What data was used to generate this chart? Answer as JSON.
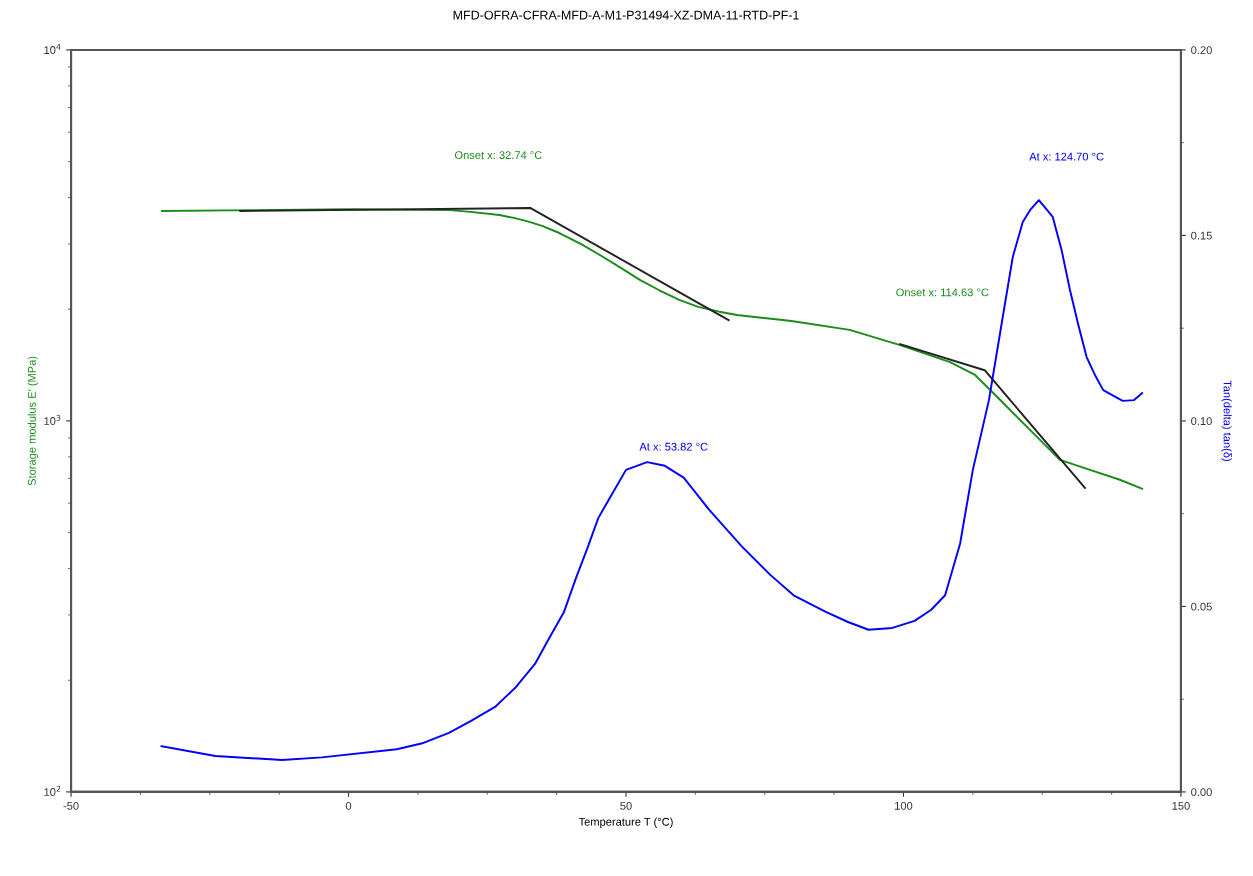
{
  "chart_data": {
    "type": "line",
    "title": "MFD-OFRA-CFRA-MFD-A-M1-P31494-XZ-DMA-11-RTD-PF-1",
    "xlabel": "Temperature T (°C)",
    "ylabel": "Storage modulus E′ (MPa)",
    "y2label": "Tan(delta) tan(δ)",
    "log": "y",
    "grid": false,
    "xlim": [
      -50,
      150
    ],
    "xticks": [
      -50,
      0,
      50,
      100,
      150
    ],
    "ylim": [
      100,
      10000
    ],
    "yticks": [
      {
        "value": 100,
        "label": "10$^{2}$"
      },
      {
        "value": 1000,
        "label": "10$^{3}$"
      },
      {
        "value": 10000,
        "label": "10$^{4}$"
      }
    ],
    "y2lim": [
      0,
      0.2
    ],
    "y2ticks": [
      {
        "value": 0,
        "label": "0.00"
      },
      {
        "value": 0.05,
        "label": "0.05"
      },
      {
        "value": 0.1,
        "label": "0.10"
      },
      {
        "value": 0.15,
        "label": "0.15"
      },
      {
        "value": 0.2,
        "label": "0.20"
      }
    ],
    "series": [
      {
        "color": "#1a8c1a",
        "x": [
          -33.6,
          0.3,
          18.3,
          22,
          27.2,
          30,
          32.6,
          35,
          38,
          42,
          45.3,
          49,
          52.5,
          56,
          59.6,
          63,
          66.8,
          70,
          74,
          79.8,
          90.3,
          99.4,
          108.4,
          112.9,
          117.4,
          122.8,
          128.2,
          133.6,
          139,
          143
        ],
        "values": [
          3680,
          3720,
          3700,
          3660,
          3590,
          3520,
          3440,
          3350,
          3210,
          2990,
          2800,
          2590,
          2400,
          2250,
          2120,
          2030,
          1970,
          1930,
          1900,
          1860,
          1760,
          1600,
          1440,
          1330,
          1140,
          946,
          785,
          738,
          694,
          656
        ]
      },
      {
        "color": "#0000ff",
        "axis": "y2",
        "x": [
          -33.7,
          -24,
          -12,
          -4.8,
          8.7,
          13.5,
          18.1,
          22,
          26.4,
          30,
          33.6,
          36,
          38.8,
          41,
          43,
          45,
          47.1,
          50,
          53.8,
          57,
          60.4,
          65,
          70.9,
          76,
          80.2,
          86,
          90,
          93.7,
          98,
          102,
          105,
          107.5,
          110.2,
          112.5,
          115.4,
          117.5,
          119.7,
          121.5,
          122.8,
          124.4,
          126.9,
          128.5,
          130,
          131.5,
          133,
          134.5,
          136,
          139.5,
          141.5,
          143
        ],
        "values": [
          0.0123,
          0.0097,
          0.0086,
          0.0093,
          0.0115,
          0.0132,
          0.0159,
          0.0191,
          0.0229,
          0.028,
          0.0345,
          0.041,
          0.0484,
          0.0577,
          0.0655,
          0.0738,
          0.0793,
          0.0868,
          0.0889,
          0.0879,
          0.0847,
          0.076,
          0.0661,
          0.0585,
          0.053,
          0.0485,
          0.0458,
          0.0437,
          0.0442,
          0.0461,
          0.0491,
          0.053,
          0.0669,
          0.0868,
          0.1056,
          0.1245,
          0.1442,
          0.1536,
          0.1568,
          0.1595,
          0.155,
          0.146,
          0.1353,
          0.1259,
          0.1172,
          0.1124,
          0.1083,
          0.1054,
          0.1056,
          0.1075
        ]
      },
      {
        "color": "#222222",
        "x": [
          -19.5,
          32.74,
          68.5
        ],
        "values": [
          3680,
          3750,
          1870
        ]
      },
      {
        "color": "#222222",
        "x": [
          99.4,
          114.63,
          132.7
        ],
        "values": [
          1610,
          1370,
          660
        ]
      }
    ],
    "annotations": [
      "Onset x: 32.74 °C",
      "At x: 53.82 °C",
      "Onset x: 114.63 °C",
      "At x: 124.70 °C"
    ]
  }
}
